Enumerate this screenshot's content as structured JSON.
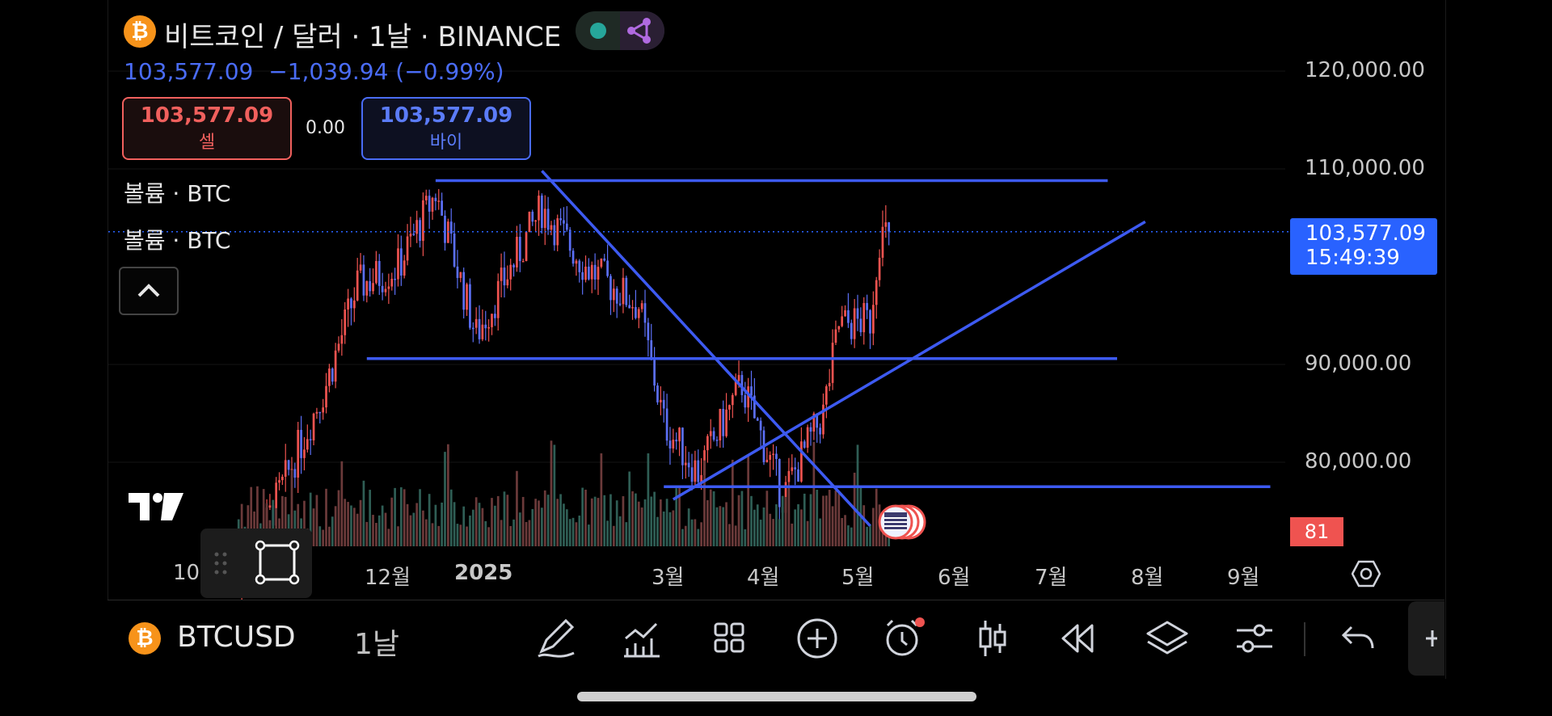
{
  "header": {
    "coin_glyph": "₿",
    "title": "비트코인 / 달러 · 1날 · BINANCE",
    "price": "103,577.09",
    "change": "−1,039.94 (−0.99%)",
    "sell_price": "103,577.09",
    "sell_label": "셀",
    "spread": "0.00",
    "buy_price": "103,577.09",
    "buy_label": "바이"
  },
  "indicators": {
    "volume_label_1": "볼륨 · BTC",
    "volume_label_2": "볼륨 · BTC"
  },
  "price_axis": {
    "labels": [
      "120,000.00",
      "110,000.00",
      "90,000.00",
      "80,000.00"
    ],
    "current_price": "103,577.09",
    "countdown": "15:49:39",
    "volume_badge": "81"
  },
  "time_axis": {
    "labels": [
      "10",
      "12월",
      "2025",
      "3월",
      "4월",
      "5월",
      "6월",
      "7월",
      "8월",
      "9월"
    ]
  },
  "bottom_bar": {
    "symbol": "BTCUSD",
    "interval": "1날",
    "tools": [
      "draw-icon",
      "indicators-icon",
      "templates-icon",
      "add-icon",
      "alert-icon",
      "candle-style-icon",
      "replay-icon",
      "layers-icon",
      "settings-sliders-icon",
      "undo-icon"
    ]
  },
  "colors": {
    "accent": "#2962ff",
    "line_blue": "#3d5af1",
    "up": "#ef5350",
    "down": "#5b6ff5",
    "sell": "#f0605d",
    "buy": "#4a6cf7",
    "badge": "#ef5350"
  },
  "chart_data": {
    "type": "candlestick",
    "symbol": "BTCUSD",
    "interval": "1D",
    "ylim": [
      72000,
      123000
    ],
    "y_ticks": [
      120000,
      110000,
      90000,
      80000
    ],
    "current_price": 103577.09,
    "series_sketch": [
      {
        "date": "2024-10-15",
        "price": 67000
      },
      {
        "date": "2024-11-12",
        "price": 88000
      },
      {
        "date": "2024-11-22",
        "price": 98000
      },
      {
        "date": "2024-12-05",
        "price": 100000
      },
      {
        "date": "2024-12-17",
        "price": 107500
      },
      {
        "date": "2024-12-30",
        "price": 93000
      },
      {
        "date": "2025-01-20",
        "price": 106000
      },
      {
        "date": "2025-02-03",
        "price": 100000
      },
      {
        "date": "2025-02-20",
        "price": 96000
      },
      {
        "date": "2025-02-28",
        "price": 84000
      },
      {
        "date": "2025-03-11",
        "price": 79000
      },
      {
        "date": "2025-03-25",
        "price": 88000
      },
      {
        "date": "2025-04-07",
        "price": 76500
      },
      {
        "date": "2025-04-20",
        "price": 85000
      },
      {
        "date": "2025-04-25",
        "price": 94000
      },
      {
        "date": "2025-05-05",
        "price": 94500
      },
      {
        "date": "2025-05-08",
        "price": 103000
      },
      {
        "date": "2025-05-11",
        "price": 103577
      }
    ],
    "trendlines": [
      {
        "from": {
          "date": "2024-12-17",
          "price": 108800
        },
        "to": {
          "date": "2025-07-20",
          "price": 108800
        }
      },
      {
        "from": {
          "date": "2024-11-25",
          "price": 90600
        },
        "to": {
          "date": "2025-07-23",
          "price": 90600
        }
      },
      {
        "from": {
          "date": "2025-02-28",
          "price": 77500
        },
        "to": {
          "date": "2025-09-10",
          "price": 77500
        }
      },
      {
        "from": {
          "date": "2025-01-20",
          "price": 109800
        },
        "to": {
          "date": "2025-05-05",
          "price": 73500
        }
      },
      {
        "from": {
          "date": "2025-03-03",
          "price": 76200
        },
        "to": {
          "date": "2025-08-01",
          "price": 104600
        }
      }
    ]
  }
}
